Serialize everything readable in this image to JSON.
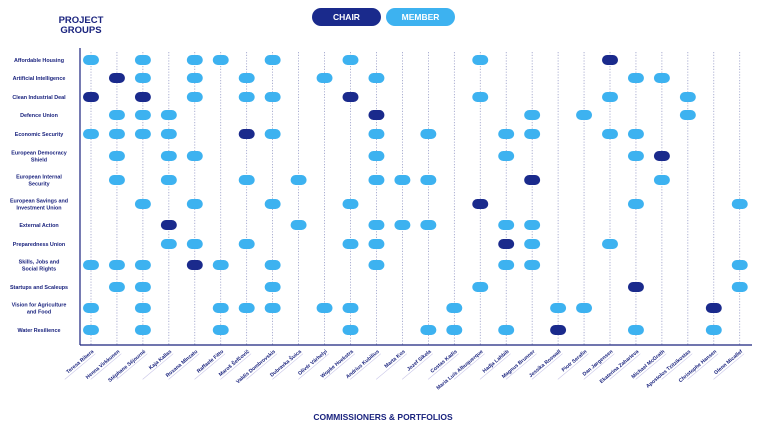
{
  "header": {
    "project_groups_label": [
      "PROJECT",
      "GROUPS"
    ],
    "commissioners_label": "COMMISSIONERS & PORTFOLIOS"
  },
  "legend": {
    "chair_label": "CHAIR",
    "member_label": "MEMBER",
    "chair_color": "#1a2a8c",
    "member_color": "#3db2f0"
  },
  "groups": [
    [
      "Affordable Housing"
    ],
    [
      "Artificial Intelligence"
    ],
    [
      "Clean Industrial Deal"
    ],
    [
      "Defence Union"
    ],
    [
      "Economic Security"
    ],
    [
      "European Democracy",
      "Shield"
    ],
    [
      "European Internal",
      "Security"
    ],
    [
      "European Savings and",
      "Investment Union"
    ],
    [
      "External Action"
    ],
    [
      "Preparedness Union"
    ],
    [
      "Skills, Jobs and",
      "Social Rights"
    ],
    [
      "Startups and Scaleups"
    ],
    [
      "Vision for Agriculture",
      "and Food"
    ],
    [
      "Water Resilience"
    ]
  ],
  "commissioners": [
    "Teresa Ribera",
    "Henna Virkkunen",
    "Stéphane Séjourné",
    "Kaja Kallas",
    "Roxana Mînzatu",
    "Raffaele Fitto",
    "Maroš Šefčovič",
    "Valdis Dombrovskis",
    "Dubravka Šuica",
    "Olivér Várhelyi",
    "Wopke Hoekstra",
    "Andrius Kubilius",
    "Marta Kos",
    "Jozef Síkela",
    "Costas Kadis",
    "Maria Luís Albuquerque",
    "Hadja Lahbib",
    "Magnus Brunner",
    "Jessika Roswall",
    "Piotr Serafin",
    "Dan Jørgensen",
    "Ekaterina Zaharieva",
    "Michael McGrath",
    "Apostolos Tzitzikostas",
    "Christophe Hansen",
    "Glenn Micallef"
  ],
  "memberships": [
    [
      "M",
      "",
      "M",
      "",
      "M",
      "M",
      "",
      "M",
      "",
      "",
      "M",
      "",
      "",
      "",
      "",
      "M",
      "",
      "",
      "",
      "",
      "C",
      "",
      "",
      "",
      "",
      ""
    ],
    [
      "",
      "C",
      "M",
      "",
      "M",
      "",
      "M",
      "",
      "",
      "M",
      "",
      "M",
      "",
      "",
      "",
      "",
      "",
      "",
      "",
      "",
      "",
      "M",
      "M",
      "",
      "",
      ""
    ],
    [
      "C",
      "",
      "C",
      "",
      "M",
      "",
      "M",
      "M",
      "",
      "",
      "C",
      "",
      "",
      "",
      "",
      "M",
      "",
      "",
      "",
      "",
      "M",
      "",
      "",
      "M",
      "",
      ""
    ],
    [
      "",
      "M",
      "M",
      "M",
      "",
      "",
      "",
      "",
      "",
      "",
      "",
      "C",
      "",
      "",
      "",
      "",
      "",
      "M",
      "",
      "M",
      "",
      "",
      "",
      "M",
      "",
      ""
    ],
    [
      "M",
      "M",
      "M",
      "M",
      "",
      "",
      "C",
      "M",
      "",
      "",
      "",
      "M",
      "",
      "M",
      "",
      "",
      "M",
      "M",
      "",
      "",
      "M",
      "M",
      "",
      "",
      "",
      ""
    ],
    [
      "",
      "M",
      "",
      "M",
      "M",
      "",
      "",
      "",
      "",
      "",
      "",
      "M",
      "",
      "",
      "",
      "",
      "M",
      "",
      "",
      "",
      "",
      "M",
      "C",
      "",
      "",
      ""
    ],
    [
      "",
      "M",
      "",
      "M",
      "",
      "",
      "M",
      "",
      "M",
      "",
      "",
      "M",
      "M",
      "M",
      "",
      "",
      "",
      "C",
      "",
      "",
      "",
      "",
      "M",
      "",
      "",
      ""
    ],
    [
      "",
      "",
      "M",
      "",
      "M",
      "",
      "",
      "M",
      "",
      "",
      "M",
      "",
      "",
      "",
      "",
      "C",
      "",
      "",
      "",
      "",
      "",
      "M",
      "",
      "",
      "",
      "M"
    ],
    [
      "",
      "",
      "",
      "C",
      "",
      "",
      "",
      "",
      "M",
      "",
      "",
      "M",
      "M",
      "M",
      "",
      "",
      "M",
      "M",
      "",
      "",
      "",
      "",
      "",
      "",
      "",
      ""
    ],
    [
      "",
      "",
      "",
      "M",
      "M",
      "",
      "M",
      "",
      "",
      "",
      "M",
      "M",
      "",
      "",
      "",
      "",
      "C",
      "M",
      "",
      "",
      "M",
      "",
      "",
      "",
      "",
      ""
    ],
    [
      "M",
      "M",
      "M",
      "",
      "C",
      "M",
      "",
      "M",
      "",
      "",
      "",
      "M",
      "",
      "",
      "",
      "",
      "M",
      "M",
      "",
      "",
      "",
      "",
      "",
      "",
      "",
      "M"
    ],
    [
      "",
      "M",
      "M",
      "",
      "",
      "",
      "",
      "M",
      "",
      "",
      "",
      "",
      "",
      "",
      "",
      "M",
      "",
      "",
      "",
      "",
      "",
      "C",
      "",
      "",
      "",
      "M"
    ],
    [
      "M",
      "",
      "M",
      "",
      "",
      "M",
      "M",
      "M",
      "",
      "M",
      "M",
      "",
      "",
      "",
      "M",
      "",
      "",
      "",
      "M",
      "M",
      "",
      "",
      "",
      "",
      "C",
      ""
    ],
    [
      "M",
      "",
      "M",
      "",
      "",
      "M",
      "",
      "",
      "",
      "",
      "M",
      "",
      "",
      "M",
      "M",
      "",
      "M",
      "",
      "C",
      "",
      "",
      "M",
      "",
      "",
      "M",
      ""
    ]
  ]
}
